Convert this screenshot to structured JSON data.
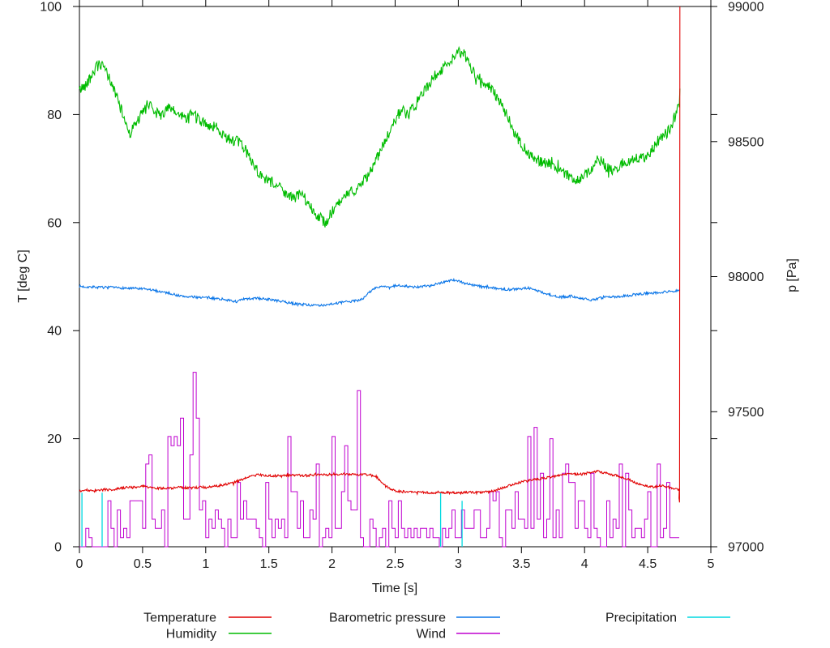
{
  "axes": {
    "x": {
      "label": "Time [s]",
      "min": 0,
      "max": 5,
      "ticks": [
        0,
        0.5,
        1,
        1.5,
        2,
        2.5,
        3,
        3.5,
        4,
        4.5,
        5
      ],
      "tick_labels": [
        "0",
        "0.5",
        "1",
        "1.5",
        "2",
        "2.5",
        "3",
        "3.5",
        "4",
        "4.5",
        "5"
      ]
    },
    "y_left": {
      "label": "T [deg C]",
      "min": 0,
      "max": 100,
      "ticks": [
        0,
        20,
        40,
        60,
        80,
        100
      ],
      "tick_labels": [
        "0",
        "20",
        "40",
        "60",
        "80",
        "100"
      ]
    },
    "y_right": {
      "label": "p [Pa]",
      "min": 97000,
      "max": 99000,
      "ticks": [
        97000,
        97500,
        98000,
        98500,
        99000
      ],
      "tick_labels": [
        "97000",
        "97500",
        "98000",
        "98500",
        "99000"
      ]
    }
  },
  "legend": {
    "items": [
      {
        "label": "Temperature",
        "series": "temperature",
        "col": 0,
        "row": 0
      },
      {
        "label": "Humidity",
        "series": "humidity",
        "col": 0,
        "row": 1
      },
      {
        "label": "Barometric pressure",
        "series": "pressure",
        "col": 1,
        "row": 0
      },
      {
        "label": "Wind",
        "series": "wind",
        "col": 1,
        "row": 1
      },
      {
        "label": "Precipitation",
        "series": "precipitation",
        "col": 2,
        "row": 0
      }
    ]
  },
  "chart_data": {
    "type": "line",
    "title": "",
    "xlabel": "Time [s]",
    "ylabel": "T [deg C]",
    "y2label": "p [Pa]",
    "xlim": [
      0,
      5
    ],
    "ylim": [
      0,
      100
    ],
    "y2lim": [
      97000,
      99000
    ],
    "grid": false,
    "legend_position": "below",
    "frame_color": "#000000",
    "background": "#ffffff",
    "x_data_end": 4.755,
    "series": {
      "temperature": {
        "name": "Temperature",
        "color": "#e10000",
        "axis": "left",
        "unit": "deg C",
        "t_step": 0.05,
        "noise_amp": 0.22,
        "values": [
          10.4,
          10.5,
          10.3,
          10.4,
          10.6,
          10.5,
          10.7,
          10.9,
          11.1,
          11.0,
          11.2,
          11.0,
          10.9,
          10.8,
          10.8,
          10.9,
          11.0,
          10.9,
          10.9,
          11.0,
          11.0,
          11.2,
          11.3,
          11.5,
          11.7,
          12.1,
          12.6,
          13.0,
          13.3,
          13.3,
          13.2,
          13.1,
          13.1,
          13.2,
          13.3,
          13.2,
          13.2,
          13.3,
          13.4,
          13.3,
          13.4,
          13.4,
          13.5,
          13.4,
          13.3,
          13.4,
          13.3,
          13.0,
          11.8,
          10.8,
          10.3,
          10.2,
          10.2,
          10.1,
          10.1,
          10.0,
          10.0,
          10.1,
          10.0,
          10.0,
          9.9,
          10.0,
          10.1,
          10.0,
          10.1,
          10.2,
          10.5,
          10.9,
          11.3,
          11.7,
          12.0,
          12.2,
          12.4,
          12.6,
          12.8,
          13.0,
          13.2,
          13.4,
          13.5,
          13.4,
          13.5,
          13.7,
          14.0,
          13.7,
          13.4,
          13.2,
          12.8,
          12.4,
          11.9,
          11.5,
          11.2,
          11.1,
          11.3,
          11.1,
          10.7,
          10.5
        ],
        "tail": [
          [
            4.748,
            9.0
          ],
          [
            4.752,
            8.2
          ],
          [
            4.755,
            100
          ]
        ]
      },
      "humidity": {
        "name": "Humidity",
        "color": "#00bc00",
        "axis": "left",
        "unit": "%",
        "t_step": 0.05,
        "noise_amp": 1.0,
        "values": [
          84.5,
          85.5,
          87.5,
          89.3,
          88.5,
          86.0,
          83.0,
          79.5,
          76.5,
          78.5,
          80.3,
          82.3,
          80.5,
          79.8,
          81.2,
          80.5,
          79.8,
          79.4,
          80.4,
          78.8,
          78.4,
          77.8,
          77.4,
          76.0,
          75.4,
          75.0,
          74.0,
          72.0,
          70.0,
          68.4,
          67.4,
          67.0,
          66.4,
          65.0,
          64.4,
          65.4,
          64.0,
          62.4,
          61.0,
          60.0,
          62.0,
          63.4,
          64.6,
          65.6,
          66.4,
          67.6,
          69.4,
          71.6,
          74.0,
          76.4,
          79.0,
          81.0,
          79.8,
          81.4,
          83.4,
          85.0,
          86.8,
          88.0,
          89.0,
          90.4,
          91.6,
          91.0,
          88.6,
          87.0,
          86.0,
          85.0,
          83.4,
          81.4,
          79.0,
          76.4,
          74.4,
          73.0,
          72.0,
          71.4,
          71.0,
          70.6,
          70.0,
          69.0,
          68.0,
          68.0,
          68.6,
          69.6,
          71.6,
          71.0,
          69.6,
          70.0,
          71.0,
          71.4,
          72.0,
          71.6,
          72.4,
          74.0,
          75.4,
          76.6,
          78.4,
          82.0
        ],
        "tail": [
          [
            4.755,
            84.8
          ]
        ]
      },
      "pressure": {
        "name": "Barometric pressure",
        "color": "#0b76e8",
        "axis": "right",
        "unit": "Pa",
        "t_step": 0.05,
        "noise_amp": 4.5,
        "values": [
          97964,
          97962,
          97962,
          97960,
          97960,
          97960,
          97958,
          97958,
          97956,
          97956,
          97954,
          97952,
          97948,
          97944,
          97940,
          97934,
          97928,
          97926,
          97924,
          97924,
          97922,
          97920,
          97918,
          97916,
          97910,
          97908,
          97916,
          97918,
          97920,
          97918,
          97916,
          97912,
          97908,
          97904,
          97900,
          97898,
          97896,
          97894,
          97892,
          97896,
          97900,
          97902,
          97906,
          97908,
          97912,
          97920,
          97944,
          97960,
          97964,
          97958,
          97966,
          97968,
          97964,
          97960,
          97962,
          97966,
          97970,
          97976,
          97982,
          97988,
          97984,
          97976,
          97970,
          97966,
          97962,
          97960,
          97956,
          97954,
          97952,
          97954,
          97956,
          97958,
          97952,
          97944,
          97936,
          97928,
          97924,
          97926,
          97928,
          97922,
          97918,
          97914,
          97918,
          97922,
          97926,
          97924,
          97928,
          97930,
          97934,
          97936,
          97938,
          97940,
          97942,
          97944,
          97946,
          97950
        ],
        "tail": [
          [
            4.755,
            97950
          ]
        ]
      },
      "wind": {
        "name": "Wind",
        "color": "#bf00cf",
        "axis": "left",
        "unit": "deg C scale",
        "envelope_step": 0.1,
        "quantum": 1.7,
        "envelope_typ_max": [
          [
            2,
            6
          ],
          [
            1,
            5
          ],
          [
            3,
            9
          ],
          [
            4,
            12
          ],
          [
            3,
            10
          ],
          [
            6,
            25
          ],
          [
            5,
            15
          ],
          [
            6,
            30
          ],
          [
            7,
            26
          ],
          [
            8,
            34
          ],
          [
            6,
            21
          ],
          [
            5,
            19
          ],
          [
            4,
            14
          ],
          [
            5,
            21
          ],
          [
            6,
            14
          ],
          [
            8,
            25
          ],
          [
            8,
            25
          ],
          [
            8,
            28
          ],
          [
            7,
            18
          ],
          [
            8,
            31
          ],
          [
            8,
            30
          ],
          [
            8,
            31
          ],
          [
            7,
            28
          ],
          [
            7,
            28
          ],
          [
            4,
            13
          ],
          [
            4,
            10
          ],
          [
            3,
            9
          ],
          [
            3,
            10
          ],
          [
            3,
            8
          ],
          [
            2,
            7
          ],
          [
            3,
            10
          ],
          [
            3,
            9
          ],
          [
            4,
            13
          ],
          [
            2,
            7
          ],
          [
            4,
            12
          ],
          [
            6,
            26
          ],
          [
            5,
            15
          ],
          [
            6,
            20
          ],
          [
            5,
            16
          ],
          [
            7,
            21
          ],
          [
            5,
            15
          ],
          [
            6,
            21
          ],
          [
            5,
            16
          ],
          [
            6,
            21
          ],
          [
            4,
            13
          ],
          [
            5,
            16
          ],
          [
            5,
            17
          ],
          [
            4,
            15
          ]
        ]
      },
      "precipitation": {
        "name": "Precipitation",
        "color": "#00d9e0",
        "axis": "left",
        "unit": "",
        "events": [
          [
            0.02,
            10
          ],
          [
            0.18,
            10
          ],
          [
            2.86,
            10
          ],
          [
            3.03,
            8.5
          ]
        ]
      }
    }
  }
}
